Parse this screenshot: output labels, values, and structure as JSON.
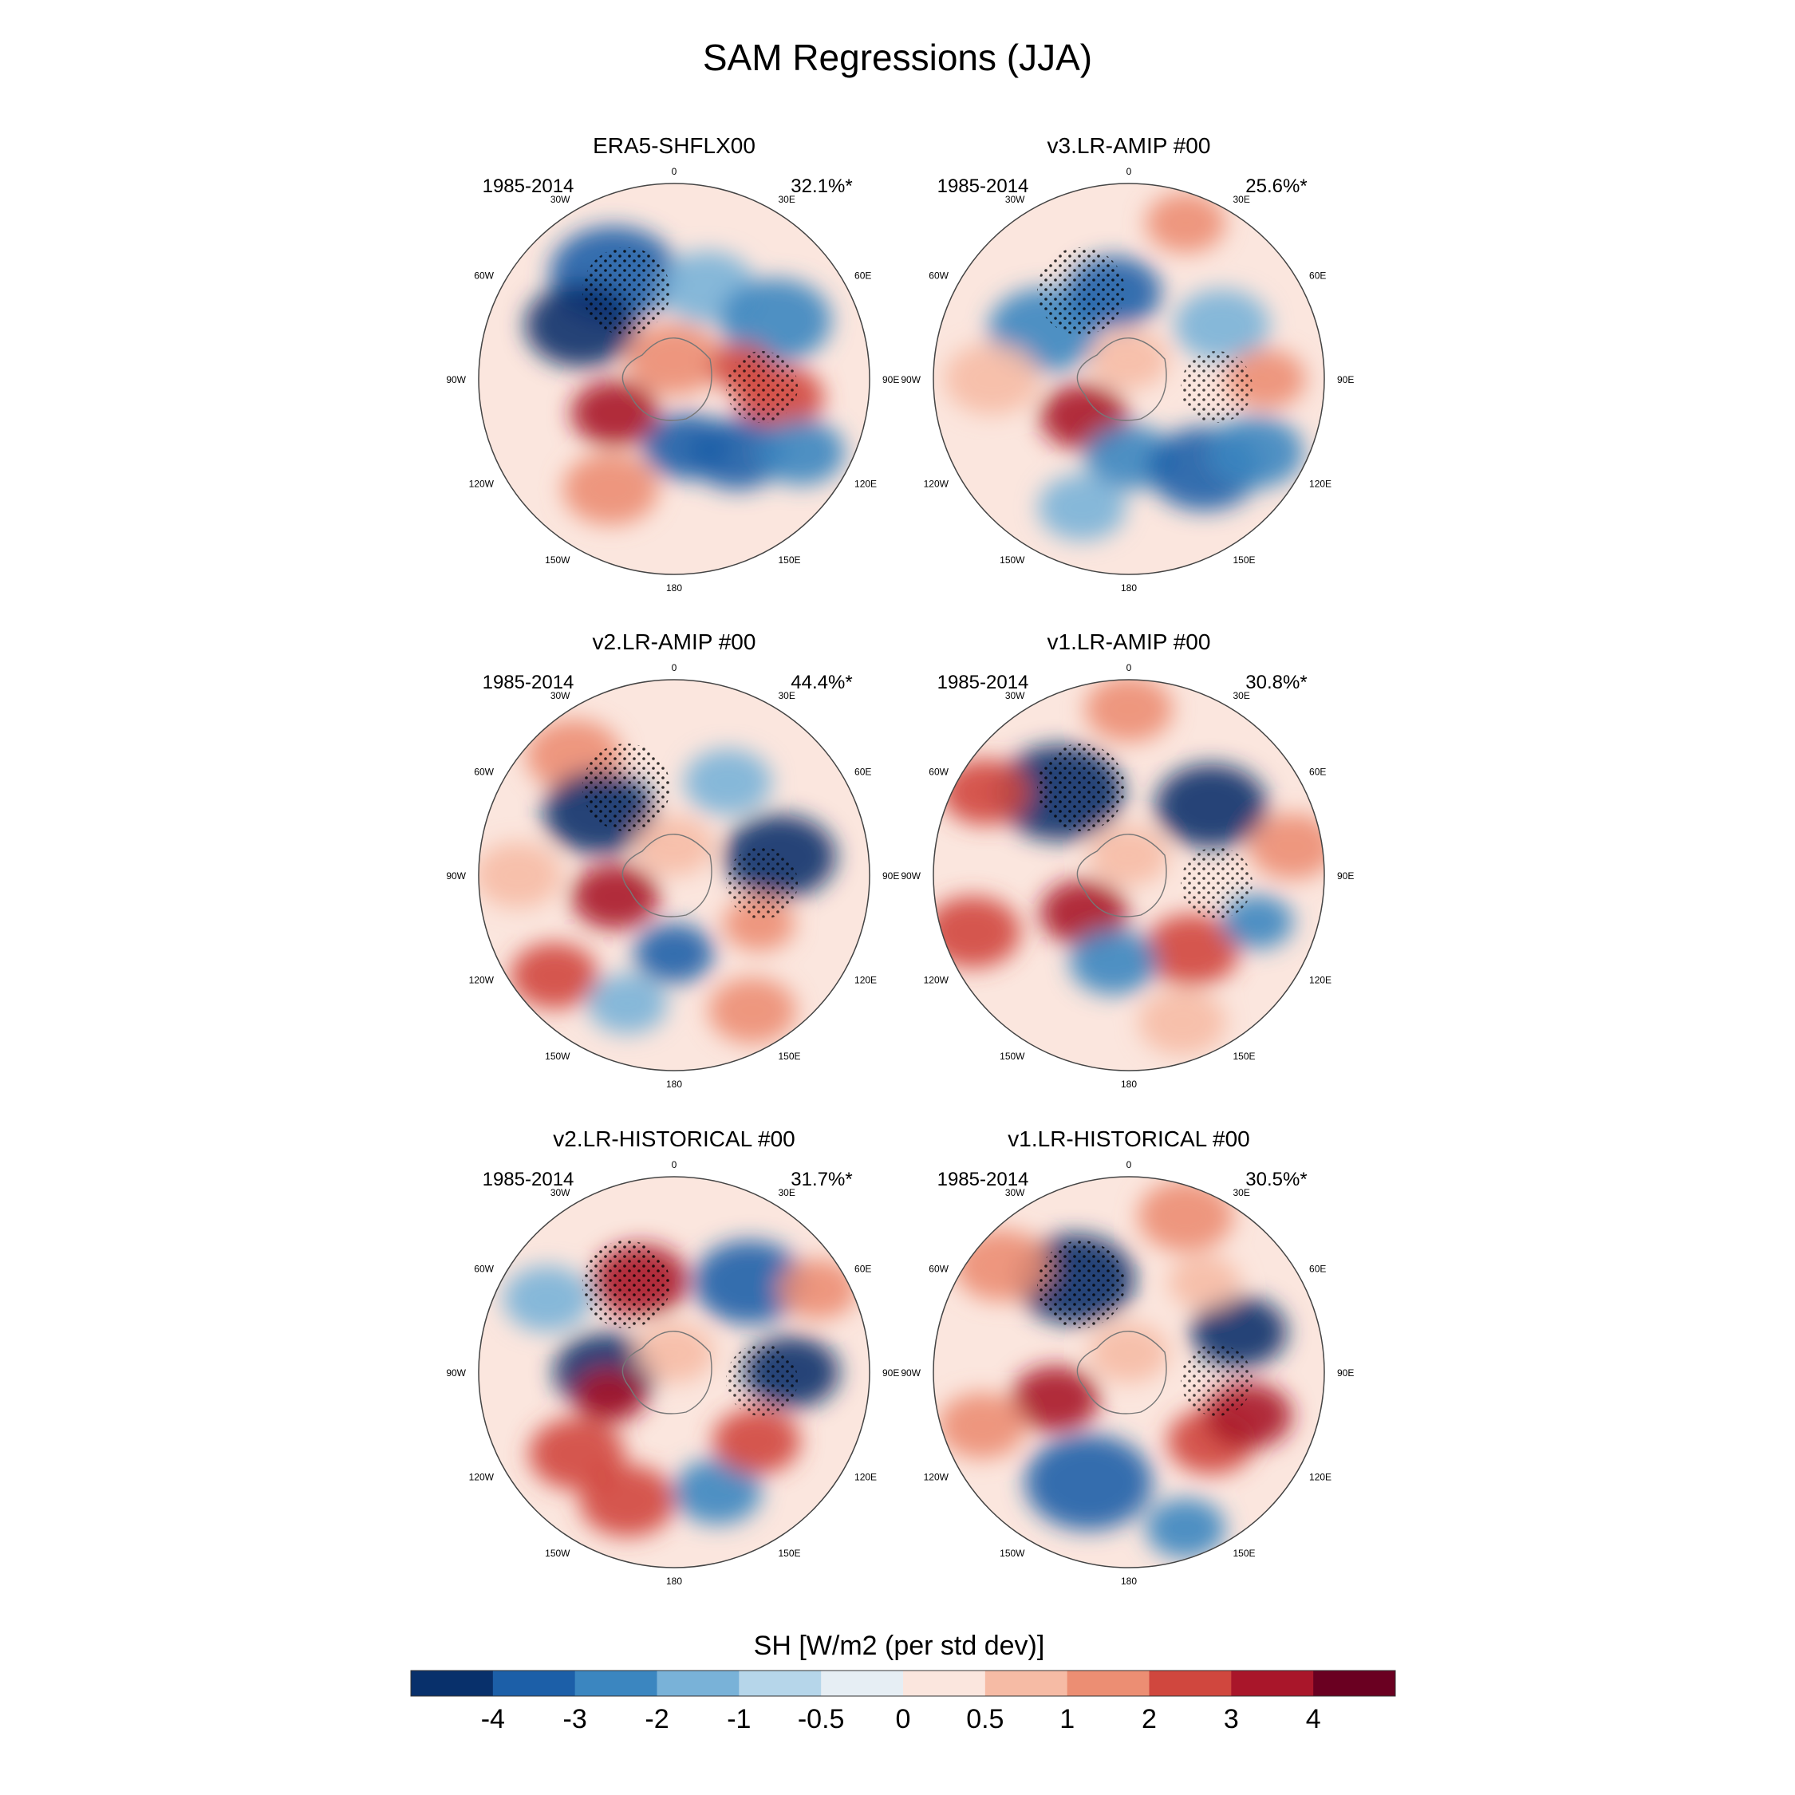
{
  "figure": {
    "title": "SAM Regressions (JJA)"
  },
  "panels": [
    {
      "title": "ERA5-SHFLX00",
      "period": "1985-2014",
      "variance": "32.1%*"
    },
    {
      "title": "v3.LR-AMIP  #00",
      "period": "1985-2014",
      "variance": "25.6%*"
    },
    {
      "title": "v2.LR-AMIP  #00",
      "period": "1985-2014",
      "variance": "44.4%*"
    },
    {
      "title": "v1.LR-AMIP  #00",
      "period": "1985-2014",
      "variance": "30.8%*"
    },
    {
      "title": "v2.LR-HISTORICAL  #00",
      "period": "1985-2014",
      "variance": "31.7%*"
    },
    {
      "title": "v1.LR-HISTORICAL  #00",
      "period": "1985-2014",
      "variance": "30.5%*"
    }
  ],
  "longitude_labels": [
    "0",
    "30E",
    "60E",
    "90E",
    "120E",
    "150E",
    "180",
    "150W",
    "120W",
    "90W",
    "60W",
    "30W"
  ],
  "colorbar": {
    "label": "SH [W/m2 (per std dev)]",
    "ticks": [
      "-4",
      "-3",
      "-2",
      "-1",
      "-0.5",
      "0",
      "0.5",
      "1",
      "2",
      "3",
      "4"
    ],
    "colors": [
      "#08306b",
      "#1c5fa8",
      "#3b86c0",
      "#79b2d8",
      "#b6d6ea",
      "#e6eef4",
      "#fbe6de",
      "#f6bba5",
      "#ec8e73",
      "#d0473e",
      "#a9162a",
      "#6a0021"
    ]
  }
}
